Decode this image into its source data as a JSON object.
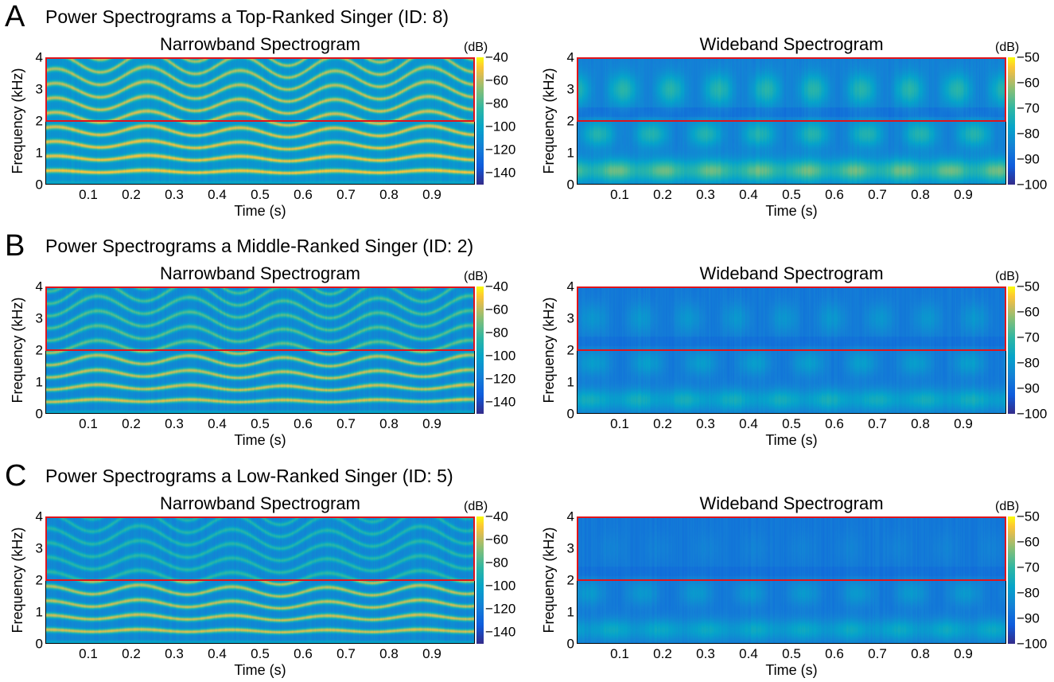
{
  "sections": [
    {
      "letter": "A",
      "title": "Power Spectrograms a Top-Ranked Singer (ID: 8)"
    },
    {
      "letter": "B",
      "title": "Power Spectrograms a Middle-Ranked Singer (ID: 2)"
    },
    {
      "letter": "C",
      "title": "Power Spectrograms a Low-Ranked Singer (ID: 5)"
    }
  ],
  "chart_data": [
    {
      "type": "heatmap",
      "section": "A",
      "title": "Narrowband Spectrogram",
      "xlabel": "Time (s)",
      "ylabel": "Frequency (kHz)",
      "xlim": [
        0,
        1
      ],
      "ylim": [
        0,
        4
      ],
      "xticks": [
        "0.1",
        "0.2",
        "0.3",
        "0.4",
        "0.5",
        "0.6",
        "0.7",
        "0.8",
        "0.9"
      ],
      "yticks": [
        "0",
        "1",
        "2",
        "3",
        "4"
      ],
      "colorbar": {
        "unit": "(dB)",
        "range": [
          -150,
          -40
        ],
        "ticks": [
          "-40",
          "-60",
          "-80",
          "-100",
          "-120",
          "-140"
        ],
        "colormap": "parula"
      },
      "highlight_region_khz": [
        2,
        4
      ],
      "highlight_color": "#e0141b"
    },
    {
      "type": "heatmap",
      "section": "A",
      "title": "Wideband Spectrogram",
      "xlabel": "Time (s)",
      "ylabel": "Frequency (kHz)",
      "xlim": [
        0,
        1
      ],
      "ylim": [
        0,
        4
      ],
      "xticks": [
        "0.1",
        "0.2",
        "0.3",
        "0.4",
        "0.5",
        "0.6",
        "0.7",
        "0.8",
        "0.9"
      ],
      "yticks": [
        "0",
        "1",
        "2",
        "3",
        "4"
      ],
      "colorbar": {
        "unit": "(dB)",
        "range": [
          -100,
          -50
        ],
        "ticks": [
          "-50",
          "-60",
          "-70",
          "-80",
          "-90",
          "-100"
        ],
        "colormap": "parula"
      },
      "highlight_region_khz": [
        2,
        4
      ],
      "highlight_color": "#e0141b"
    },
    {
      "type": "heatmap",
      "section": "B",
      "title": "Narrowband Spectrogram",
      "xlabel": "Time (s)",
      "ylabel": "Frequency (kHz)",
      "xlim": [
        0,
        1
      ],
      "ylim": [
        0,
        4
      ],
      "xticks": [
        "0.1",
        "0.2",
        "0.3",
        "0.4",
        "0.5",
        "0.6",
        "0.7",
        "0.8",
        "0.9"
      ],
      "yticks": [
        "0",
        "1",
        "2",
        "3",
        "4"
      ],
      "colorbar": {
        "unit": "(dB)",
        "range": [
          -150,
          -40
        ],
        "ticks": [
          "-40",
          "-60",
          "-80",
          "-100",
          "-120",
          "-140"
        ],
        "colormap": "parula"
      },
      "highlight_region_khz": [
        2,
        4
      ],
      "highlight_color": "#e0141b"
    },
    {
      "type": "heatmap",
      "section": "B",
      "title": "Wideband Spectrogram",
      "xlabel": "Time (s)",
      "ylabel": "Frequency (kHz)",
      "xlim": [
        0,
        1
      ],
      "ylim": [
        0,
        4
      ],
      "xticks": [
        "0.1",
        "0.2",
        "0.3",
        "0.4",
        "0.5",
        "0.6",
        "0.7",
        "0.8",
        "0.9"
      ],
      "yticks": [
        "0",
        "1",
        "2",
        "3",
        "4"
      ],
      "colorbar": {
        "unit": "(dB)",
        "range": [
          -100,
          -50
        ],
        "ticks": [
          "-50",
          "-60",
          "-70",
          "-80",
          "-90",
          "-100"
        ],
        "colormap": "parula"
      },
      "highlight_region_khz": [
        2,
        4
      ],
      "highlight_color": "#e0141b"
    },
    {
      "type": "heatmap",
      "section": "C",
      "title": "Narrowband Spectrogram",
      "xlabel": "Time (s)",
      "ylabel": "Frequency (kHz)",
      "xlim": [
        0,
        1
      ],
      "ylim": [
        0,
        4
      ],
      "xticks": [
        "0.1",
        "0.2",
        "0.3",
        "0.4",
        "0.5",
        "0.6",
        "0.7",
        "0.8",
        "0.9"
      ],
      "yticks": [
        "0",
        "1",
        "2",
        "3",
        "4"
      ],
      "colorbar": {
        "unit": "(dB)",
        "range": [
          -150,
          -40
        ],
        "ticks": [
          "-40",
          "-60",
          "-80",
          "-100",
          "-120",
          "-140"
        ],
        "colormap": "parula"
      },
      "highlight_region_khz": [
        2,
        4
      ],
      "highlight_color": "#e0141b"
    },
    {
      "type": "heatmap",
      "section": "C",
      "title": "Wideband Spectrogram",
      "xlabel": "Time (s)",
      "ylabel": "Frequency (kHz)",
      "xlim": [
        0,
        1
      ],
      "ylim": [
        0,
        4
      ],
      "xticks": [
        "0.1",
        "0.2",
        "0.3",
        "0.4",
        "0.5",
        "0.6",
        "0.7",
        "0.8",
        "0.9"
      ],
      "yticks": [
        "0",
        "1",
        "2",
        "3",
        "4"
      ],
      "colorbar": {
        "unit": "(dB)",
        "range": [
          -100,
          -50
        ],
        "ticks": [
          "-50",
          "-60",
          "-70",
          "-80",
          "-90",
          "-100"
        ],
        "colormap": "parula"
      },
      "highlight_region_khz": [
        2,
        4
      ],
      "highlight_color": "#e0141b"
    }
  ]
}
